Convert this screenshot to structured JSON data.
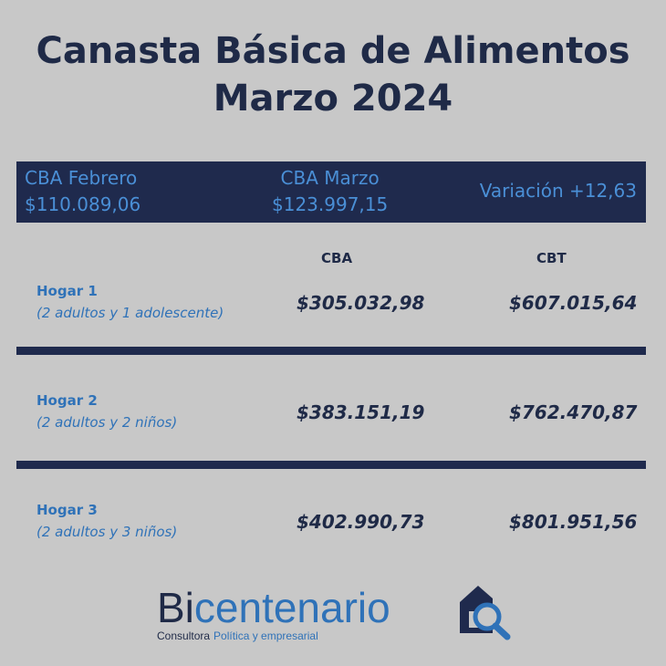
{
  "title": {
    "line1": "Canasta Básica de Alimentos",
    "line2": "Marzo 2024"
  },
  "banner": {
    "feb_label": "CBA Febrero",
    "feb_value": "$110.089,06",
    "mar_label": "CBA Marzo",
    "mar_value": "$123.997,15",
    "variation": "Variación +12,63"
  },
  "columns": {
    "cba": "CBA",
    "cbt": "CBT"
  },
  "rows": [
    {
      "name": "Hogar 1",
      "desc": "(2 adultos y 1 adolescente)",
      "cba": "$305.032,98",
      "cbt": "$607.015,64"
    },
    {
      "name": "Hogar 2",
      "desc": "(2 adultos y 2 niños)",
      "cba": "$383.151,19",
      "cbt": "$762.470,87"
    },
    {
      "name": "Hogar 3",
      "desc": "(2 adultos y 3 niños)",
      "cba": "$402.990,73",
      "cbt": "$801.951,56"
    }
  ],
  "brand": {
    "prefix": "Bi",
    "rest": "centenario",
    "tag_main": "Consultora",
    "tag_sub": "Política y empresarial",
    "icon": "house-magnifier-icon"
  },
  "colors": {
    "background": "#c8c8c8",
    "navy": "#1f2a4d",
    "blue": "#2f72b8"
  }
}
